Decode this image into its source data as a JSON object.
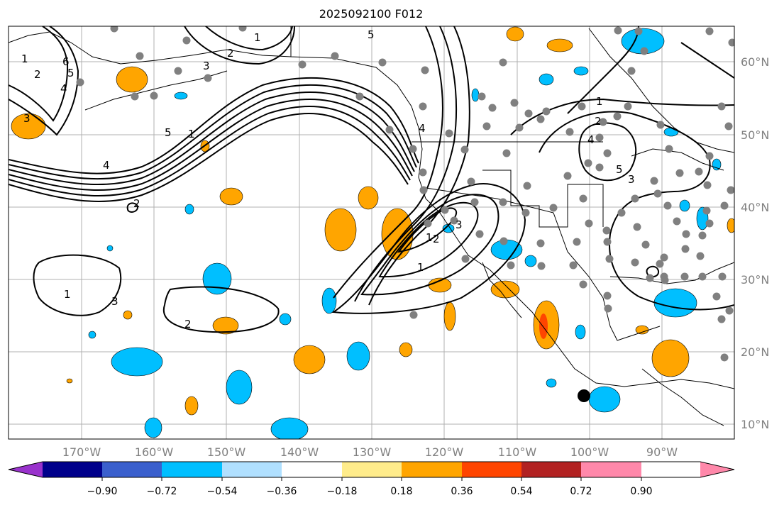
{
  "title": "2025092100 F012",
  "chart_data": {
    "type": "map",
    "valid_label": "2025092100 F012",
    "lon_ticks": [
      "170°W",
      "160°W",
      "150°W",
      "140°W",
      "130°W",
      "120°W",
      "110°W",
      "100°W",
      "90°W"
    ],
    "lat_ticks": [
      "60°N",
      "50°N",
      "40°N",
      "30°N",
      "20°N",
      "10°N"
    ],
    "colorbar": {
      "ticks": [
        "−0.90",
        "−0.72",
        "−0.54",
        "−0.36",
        "−0.18",
        "0.18",
        "0.36",
        "0.54",
        "0.72",
        "0.90"
      ],
      "colors": [
        "#9932cc",
        "#00008b",
        "#3a5fcd",
        "#00bfff",
        "#b0e0ff",
        "#ffffff",
        "#ffec8b",
        "#ffa500",
        "#ff4500",
        "#b22222",
        "#ff88aa"
      ],
      "extend": "both"
    },
    "contour_labels": [
      "1",
      "2",
      "3",
      "4",
      "5",
      "6",
      "1",
      "2",
      "3",
      "4",
      "5",
      "1",
      "2",
      "3",
      "1",
      "2",
      "1",
      "1",
      "2",
      "3",
      "4",
      "5",
      "1",
      "2",
      "3",
      "4",
      "5"
    ],
    "station_marker": "black-dot"
  }
}
